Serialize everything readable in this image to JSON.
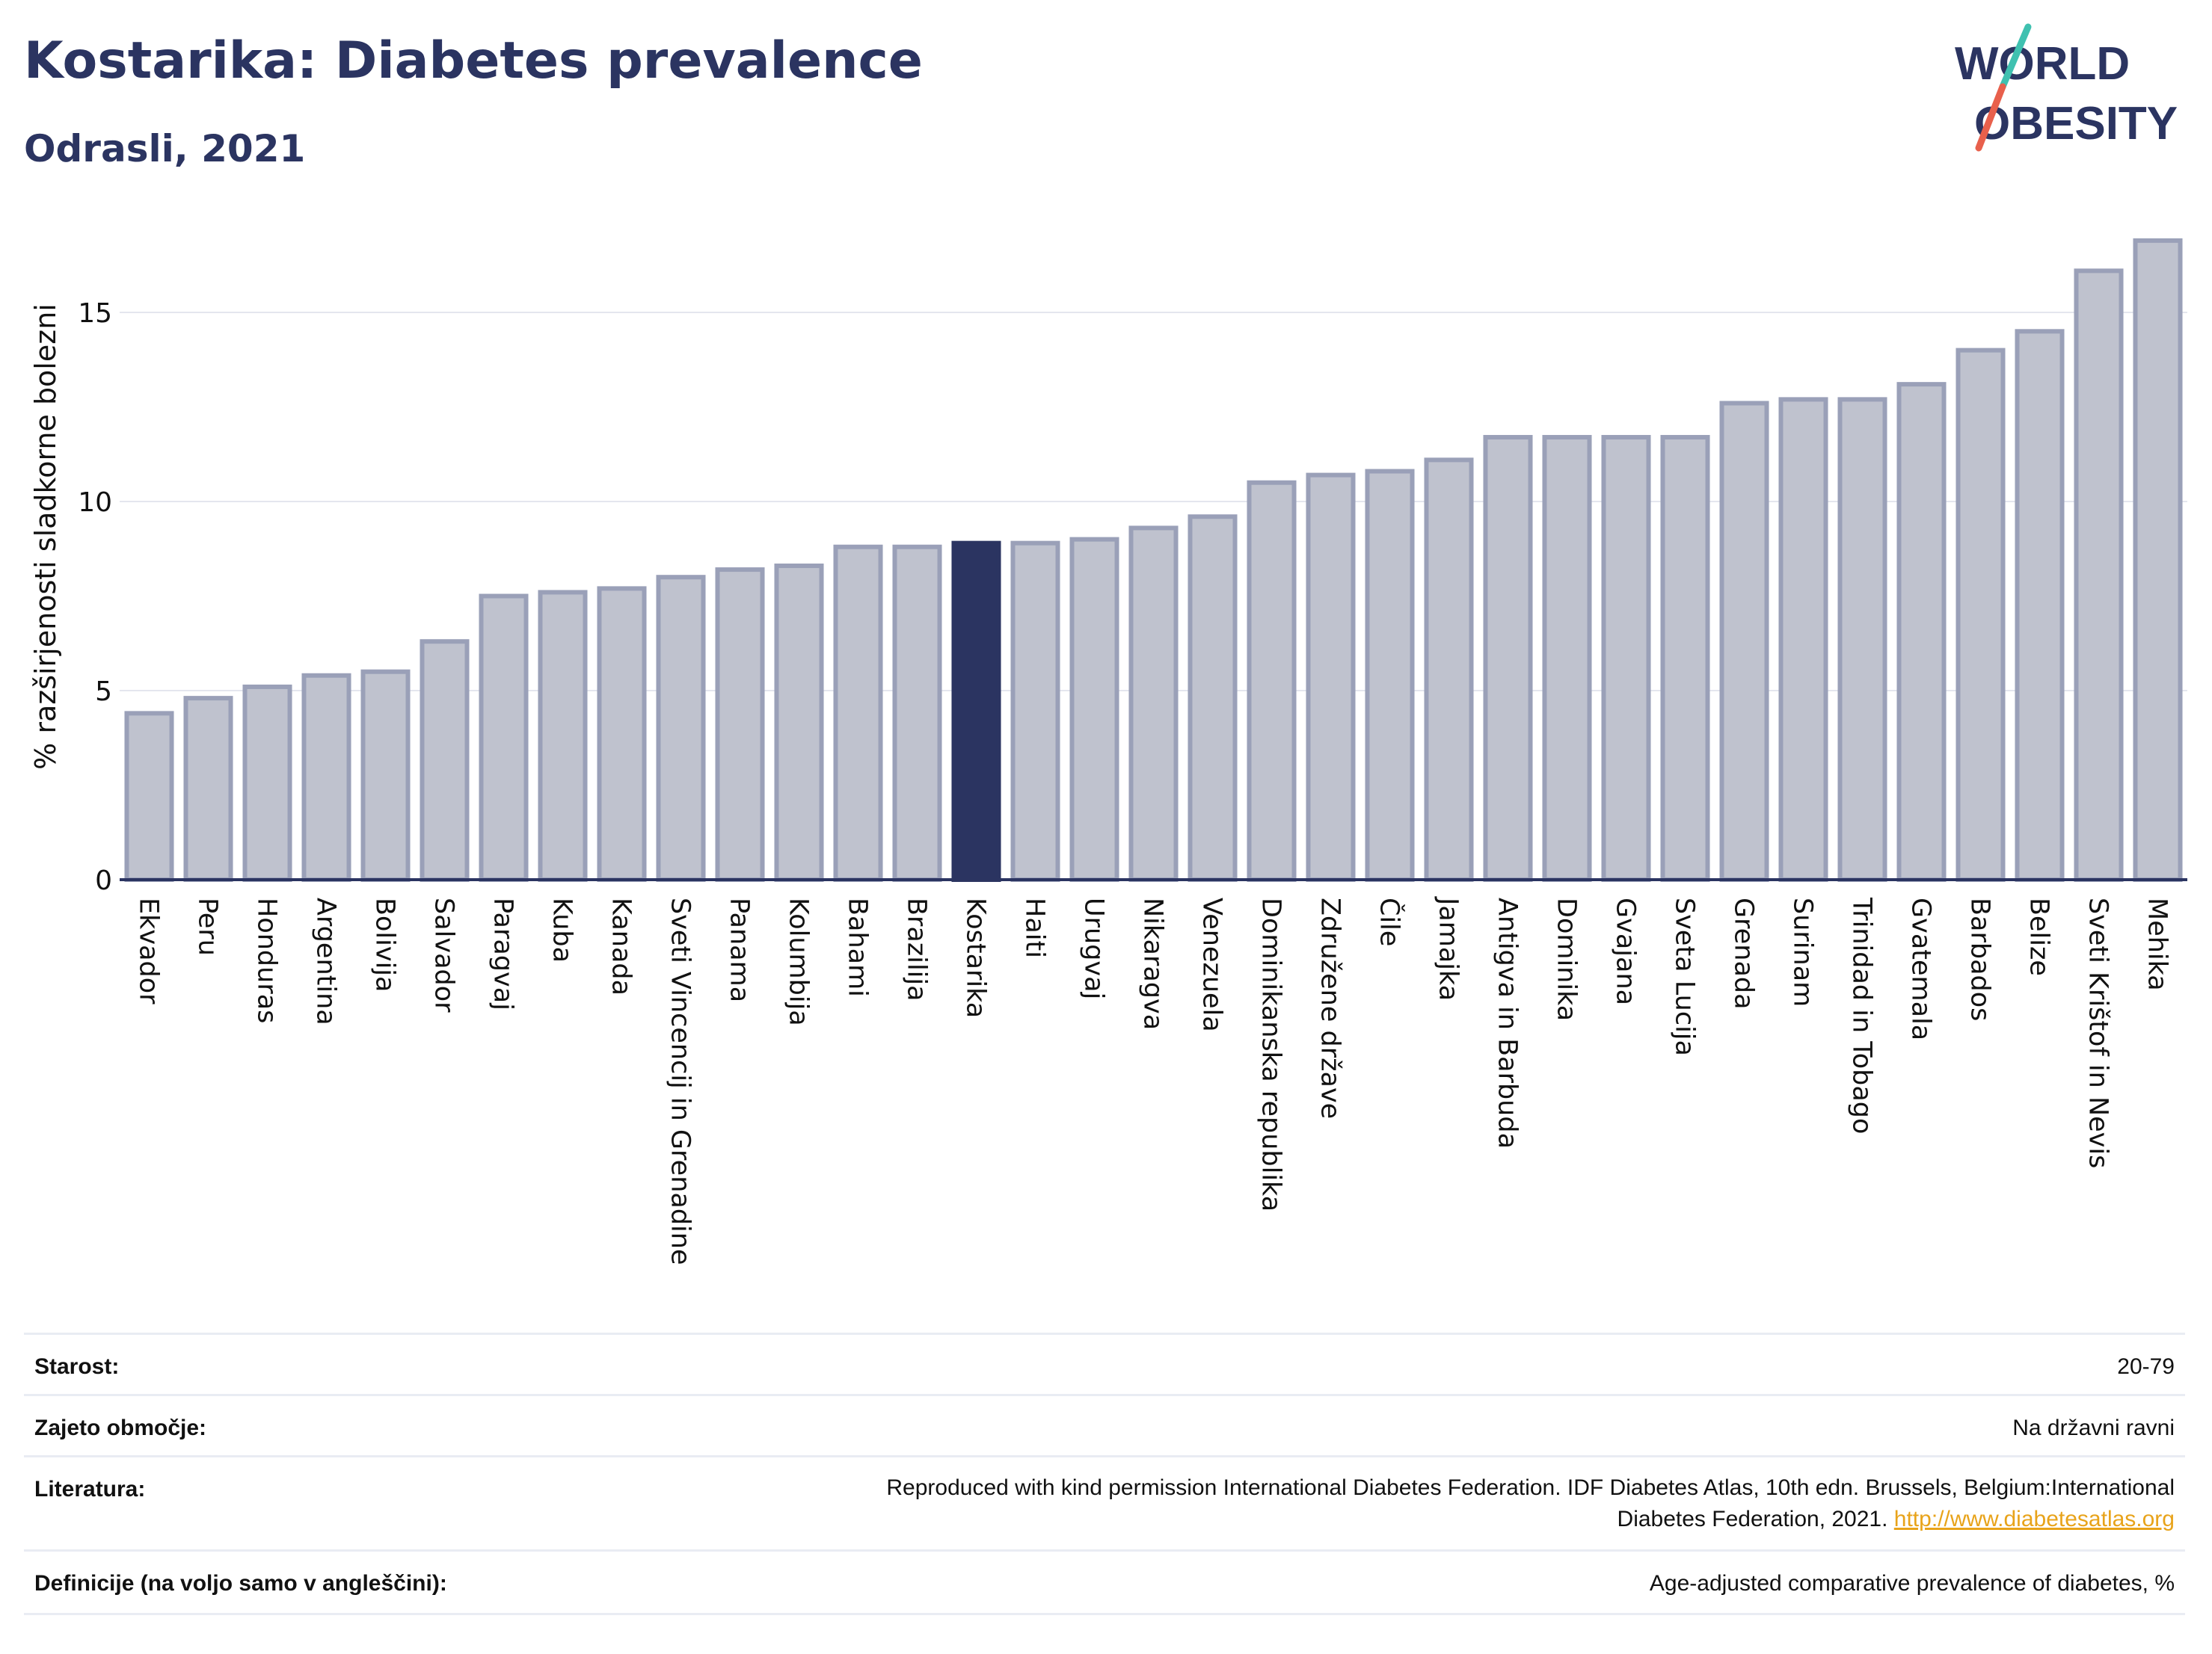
{
  "header": {
    "title": "Kostarika: Diabetes prevalence",
    "subtitle": "Odrasli, 2021"
  },
  "logo": {
    "line1": "WORLD",
    "line2": "OBESITY"
  },
  "colors": {
    "highlight": "#2b3461",
    "bar_fill": "#bfc2ce",
    "bar_stroke": "#9aa0b8",
    "grid": "#e4e6ee",
    "axis": "#2b3461"
  },
  "chart_data": {
    "type": "bar",
    "title": "Kostarika: Diabetes prevalence",
    "subtitle": "Odrasli, 2021",
    "ylabel": "% razširjenosti sladkorne bolezni",
    "xlabel": "",
    "ylim": [
      0,
      17
    ],
    "yticks": [
      0,
      5,
      10,
      15
    ],
    "grid": true,
    "highlight_category": "Kostarika",
    "categories": [
      "Ekvador",
      "Peru",
      "Honduras",
      "Argentina",
      "Bolivija",
      "Salvador",
      "Paragvaj",
      "Kuba",
      "Kanada",
      "Sveti Vincencij in Grenadine",
      "Panama",
      "Kolumbija",
      "Bahami",
      "Brazilija",
      "Kostarika",
      "Haiti",
      "Urugvaj",
      "Nikaragva",
      "Venezuela",
      "Dominikanska republika",
      "Združene države",
      "Čile",
      "Jamajka",
      "Antigva in Barbuda",
      "Dominika",
      "Gvajana",
      "Sveta Lucija",
      "Grenada",
      "Surinam",
      "Trinidad in Tobago",
      "Gvatemala",
      "Barbados",
      "Belize",
      "Sveti Krištof in Nevis",
      "Mehika"
    ],
    "values": [
      4.4,
      4.8,
      5.1,
      5.4,
      5.5,
      6.3,
      7.5,
      7.6,
      7.7,
      8.0,
      8.2,
      8.3,
      8.8,
      8.8,
      8.9,
      8.9,
      9.0,
      9.3,
      9.6,
      10.5,
      10.7,
      10.8,
      11.1,
      11.7,
      11.7,
      11.7,
      11.7,
      12.6,
      12.7,
      12.7,
      13.1,
      14.0,
      14.5,
      16.1,
      16.9
    ]
  },
  "meta": {
    "age_label": "Starost:",
    "age_value": "20-79",
    "coverage_label": "Zajeto območje:",
    "coverage_value": "Na državni ravni",
    "refs_label": "Literatura:",
    "refs_line1": "Reproduced with kind permission International Diabetes Federation.  IDF Diabetes Atlas, 10th edn. Brussels, Belgium:International",
    "refs_line2": "Diabetes Federation, 2021. ",
    "refs_link": "http://www.diabetesatlas.org",
    "defs_label": "Definicije (na voljo samo v angleščini):",
    "defs_value": "Age-adjusted comparative prevalence of diabetes, %"
  }
}
